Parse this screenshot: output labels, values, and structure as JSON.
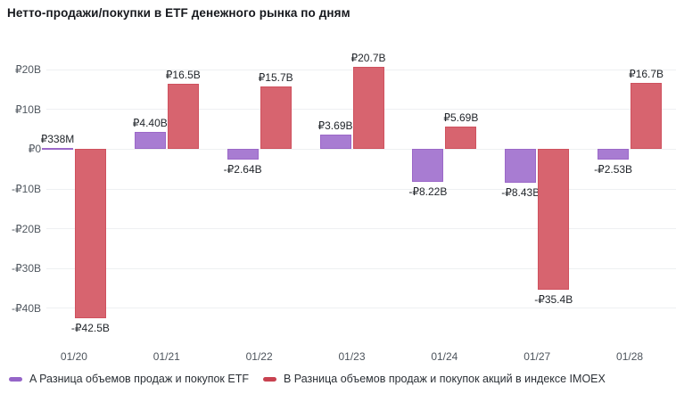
{
  "title": "Нетто-продажи/покупки в ETF денежного рынка по дням",
  "colors": {
    "etf_fill": "#a87cd2",
    "etf_border": "#9b68c8",
    "imoex_fill": "#d7646f",
    "imoex_border": "#cf515e",
    "grid": "#eef0f2",
    "axis_text": "#50575f",
    "value_label_text": "#22262b",
    "legend_marker_etf": "#9565c8",
    "legend_marker_imoex": "#c84250"
  },
  "chart_data": {
    "type": "bar",
    "title": "Нетто-продажи/покупки в ETF денежного рынка по дням",
    "categories": [
      "01/20",
      "01/21",
      "01/22",
      "01/23",
      "01/24",
      "01/27",
      "01/28"
    ],
    "series": [
      {
        "name": "A Разница объемов продаж и покупок ETF",
        "color_key": "etf",
        "values_billions_rub": [
          0.338,
          4.4,
          -2.64,
          3.69,
          -8.22,
          -8.43,
          -2.53
        ],
        "value_labels": [
          "₽338M",
          "₽4.40B",
          "-₽2.64B",
          "₽3.69B",
          "-₽8.22B",
          "-₽8.43B",
          "-₽2.53B"
        ]
      },
      {
        "name": "B Разница объемов продаж и покупок акций в индексе IMOEX",
        "color_key": "imoex",
        "values_billions_rub": [
          -42.5,
          16.5,
          15.7,
          20.7,
          5.69,
          -35.4,
          16.7
        ],
        "value_labels": [
          "-₽42.5B",
          "₽16.5B",
          "₽15.7B",
          "₽20.7B",
          "₽5.69B",
          "-₽35.4B",
          "₽16.7B"
        ]
      }
    ],
    "yticks": [
      {
        "value": 20,
        "label": "₽20B"
      },
      {
        "value": 10,
        "label": "₽10B"
      },
      {
        "value": 0,
        "label": "₽0"
      },
      {
        "value": -10,
        "label": "-₽10B"
      },
      {
        "value": -20,
        "label": "-₽20B"
      },
      {
        "value": -30,
        "label": "-₽30B"
      },
      {
        "value": -40,
        "label": "-₽40B"
      }
    ],
    "ylim": [
      25,
      -49
    ],
    "grid": "horizontal",
    "legend_position": "bottom"
  },
  "legend": {
    "items": [
      {
        "label": "A Разница объемов продаж и покупок ETF",
        "color_key": "etf"
      },
      {
        "label": "B Разница объемов продаж и покупок акций в индексе IMOEX",
        "color_key": "imoex"
      }
    ]
  }
}
